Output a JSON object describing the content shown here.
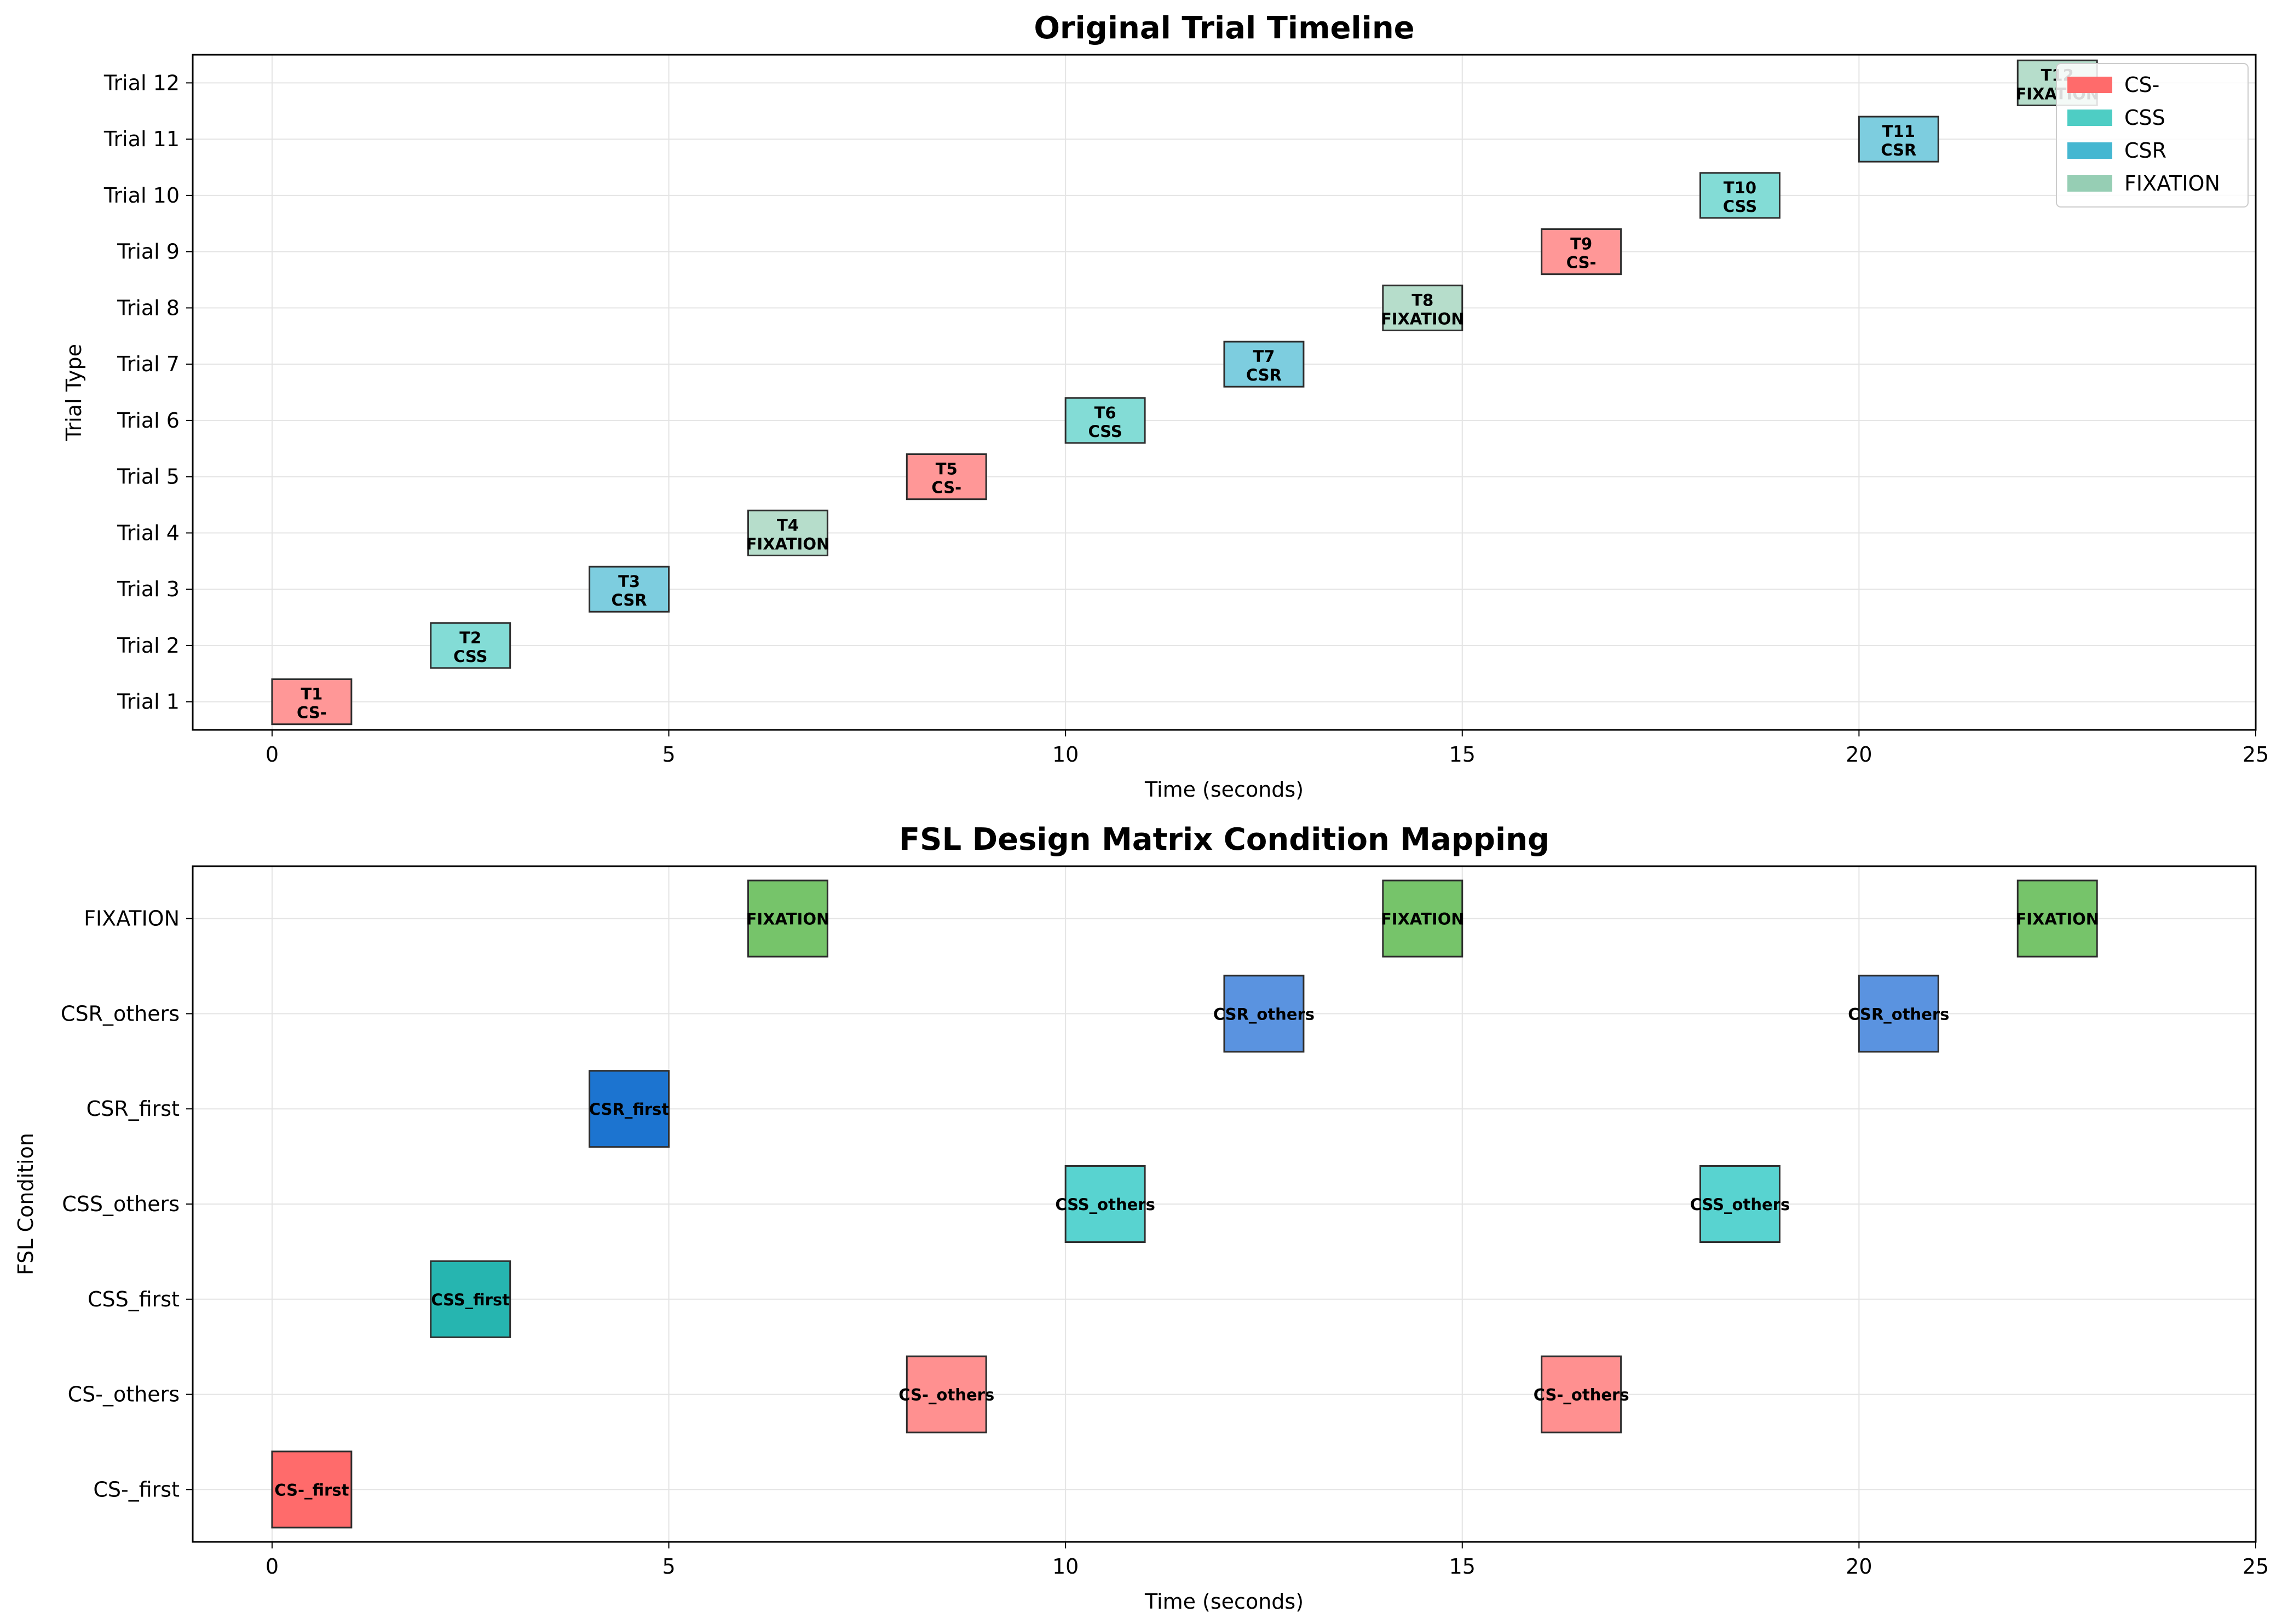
{
  "chart_data": [
    {
      "type": "bar",
      "orientation": "horizontal-timeline",
      "title": "Original Trial Timeline",
      "xlabel": "Time (seconds)",
      "ylabel": "Trial Type",
      "xlim": [
        -1,
        25
      ],
      "xticks": [
        0,
        5,
        10,
        15,
        20,
        25
      ],
      "grid": true,
      "legend_placement": "top-right",
      "categories": [
        "Trial 1",
        "Trial 2",
        "Trial 3",
        "Trial 4",
        "Trial 5",
        "Trial 6",
        "Trial 7",
        "Trial 8",
        "Trial 9",
        "Trial 10",
        "Trial 11",
        "Trial 12"
      ],
      "legend": [
        {
          "name": "CS-",
          "color": "#ff6b6b"
        },
        {
          "name": "CSS",
          "color": "#4ecdc4"
        },
        {
          "name": "CSR",
          "color": "#45b7d1"
        },
        {
          "name": "FIXATION",
          "color": "#96ceb4"
        }
      ],
      "bars": [
        {
          "row": 0,
          "start": 0,
          "duration": 1,
          "id": "T1",
          "type": "CS-",
          "color": "#ff6b6b"
        },
        {
          "row": 1,
          "start": 2,
          "duration": 1,
          "id": "T2",
          "type": "CSS",
          "color": "#4ecdc4"
        },
        {
          "row": 2,
          "start": 4,
          "duration": 1,
          "id": "T3",
          "type": "CSR",
          "color": "#45b7d1"
        },
        {
          "row": 3,
          "start": 6,
          "duration": 1,
          "id": "T4",
          "type": "FIXATION",
          "color": "#96ceb4"
        },
        {
          "row": 4,
          "start": 8,
          "duration": 1,
          "id": "T5",
          "type": "CS-",
          "color": "#ff6b6b"
        },
        {
          "row": 5,
          "start": 10,
          "duration": 1,
          "id": "T6",
          "type": "CSS",
          "color": "#4ecdc4"
        },
        {
          "row": 6,
          "start": 12,
          "duration": 1,
          "id": "T7",
          "type": "CSR",
          "color": "#45b7d1"
        },
        {
          "row": 7,
          "start": 14,
          "duration": 1,
          "id": "T8",
          "type": "FIXATION",
          "color": "#96ceb4"
        },
        {
          "row": 8,
          "start": 16,
          "duration": 1,
          "id": "T9",
          "type": "CS-",
          "color": "#ff6b6b"
        },
        {
          "row": 9,
          "start": 18,
          "duration": 1,
          "id": "T10",
          "type": "CSS",
          "color": "#4ecdc4"
        },
        {
          "row": 10,
          "start": 20,
          "duration": 1,
          "id": "T11",
          "type": "CSR",
          "color": "#45b7d1"
        },
        {
          "row": 11,
          "start": 22,
          "duration": 1,
          "id": "T12",
          "type": "FIXATION",
          "color": "#96ceb4"
        }
      ]
    },
    {
      "type": "bar",
      "orientation": "horizontal-timeline",
      "title": "FSL Design Matrix Condition Mapping",
      "xlabel": "Time (seconds)",
      "ylabel": "FSL Condition",
      "xlim": [
        -1,
        25
      ],
      "xticks": [
        0,
        5,
        10,
        15,
        20,
        25
      ],
      "grid": true,
      "categories": [
        "CS-_first",
        "CS-_others",
        "CSS_first",
        "CSS_others",
        "CSR_first",
        "CSR_others",
        "FIXATION"
      ],
      "bars": [
        {
          "row": 0,
          "start": 0,
          "duration": 1,
          "label": "CS-_first",
          "color": "#ff6b6b"
        },
        {
          "row": 2,
          "start": 2,
          "duration": 1,
          "label": "CSS_first",
          "color": "#26b5b0"
        },
        {
          "row": 4,
          "start": 4,
          "duration": 1,
          "label": "CSR_first",
          "color": "#1c74d0"
        },
        {
          "row": 6,
          "start": 6,
          "duration": 1,
          "label": "FIXATION",
          "color": "#76c46a"
        },
        {
          "row": 1,
          "start": 8,
          "duration": 1,
          "label": "CS-_others",
          "color": "#ff9090"
        },
        {
          "row": 3,
          "start": 10,
          "duration": 1,
          "label": "CSS_others",
          "color": "#58d3d0"
        },
        {
          "row": 5,
          "start": 12,
          "duration": 1,
          "label": "CSR_others",
          "color": "#5a93e0"
        },
        {
          "row": 6,
          "start": 14,
          "duration": 1,
          "label": "FIXATION",
          "color": "#76c46a"
        },
        {
          "row": 1,
          "start": 16,
          "duration": 1,
          "label": "CS-_others",
          "color": "#ff9090"
        },
        {
          "row": 3,
          "start": 18,
          "duration": 1,
          "label": "CSS_others",
          "color": "#58d3d0"
        },
        {
          "row": 5,
          "start": 20,
          "duration": 1,
          "label": "CSR_others",
          "color": "#5a93e0"
        },
        {
          "row": 6,
          "start": 22,
          "duration": 1,
          "label": "FIXATION",
          "color": "#76c46a"
        }
      ]
    }
  ]
}
